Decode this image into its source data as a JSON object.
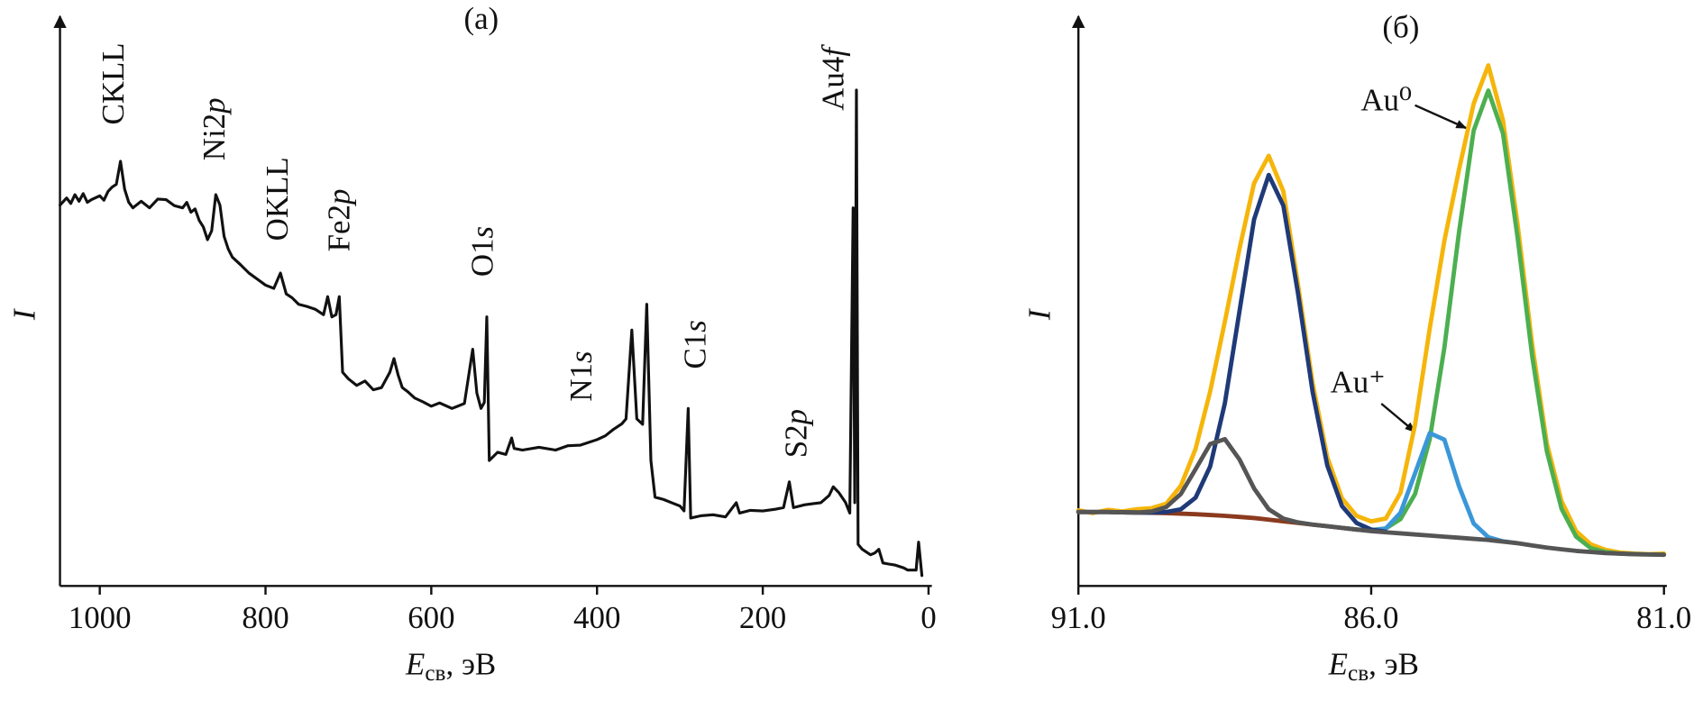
{
  "chart_data": [
    {
      "type": "line",
      "title": "(a)",
      "xlabel": "Eсв, эВ",
      "ylabel": "I",
      "xlim": [
        1048,
        -4
      ],
      "xticks": [
        1000,
        800,
        600,
        400,
        200,
        0
      ],
      "ylim": [
        0,
        100
      ],
      "annotations": [
        "CKLL",
        "Ni2p",
        "OKLL",
        "Fe2p",
        "O1s",
        "N1s",
        "C1s",
        "S2p",
        "Au4f"
      ],
      "x": [
        1048,
        1040,
        1035,
        1030,
        1025,
        1020,
        1015,
        1010,
        1000,
        995,
        990,
        985,
        980,
        975,
        970,
        965,
        960,
        950,
        940,
        930,
        920,
        910,
        900,
        895,
        890,
        885,
        880,
        875,
        870,
        865,
        860,
        855,
        850,
        845,
        840,
        830,
        820,
        810,
        800,
        790,
        782,
        775,
        768,
        760,
        750,
        740,
        730,
        725,
        720,
        715,
        711,
        707,
        700,
        690,
        680,
        670,
        660,
        650,
        645,
        640,
        635,
        628,
        620,
        610,
        600,
        590,
        575,
        560,
        550,
        545,
        540,
        536,
        533,
        530,
        520,
        510,
        503,
        500,
        490,
        470,
        450,
        435,
        420,
        400,
        390,
        380,
        370,
        365,
        358,
        352,
        345,
        340,
        335,
        330,
        320,
        310,
        300,
        295,
        290,
        287,
        275,
        260,
        245,
        232,
        228,
        215,
        200,
        185,
        175,
        168,
        163,
        150,
        140,
        130,
        120,
        115,
        108,
        100,
        95,
        91,
        89,
        87,
        85,
        80,
        75,
        70,
        65,
        60,
        55,
        48,
        40,
        30,
        25,
        15,
        12,
        8
      ],
      "series": [
        {
          "color": "#111111",
          "values": [
            69.5,
            70.8,
            69.8,
            71.4,
            70.2,
            71.6,
            70.0,
            70.5,
            71.2,
            70.4,
            72.0,
            72.8,
            73.3,
            77.5,
            72.4,
            70.0,
            69.0,
            70.2,
            69.0,
            70.6,
            70.5,
            69.4,
            69.0,
            70.0,
            68.2,
            68.8,
            66.7,
            65.5,
            63.2,
            64.8,
            71.4,
            69.5,
            63.8,
            61.5,
            60.0,
            58.6,
            57.1,
            56.0,
            54.9,
            54.3,
            57.1,
            53.3,
            52.6,
            51.4,
            51.0,
            50.5,
            49.5,
            52.8,
            49.1,
            49.5,
            52.8,
            39.0,
            37.8,
            36.6,
            37.4,
            35.8,
            36.2,
            39.0,
            41.5,
            38.5,
            36.2,
            35.4,
            34.3,
            33.6,
            32.8,
            33.4,
            32.4,
            33.3,
            43.2,
            35.2,
            32.4,
            33.5,
            49.1,
            22.9,
            24.4,
            24.0,
            27.0,
            25.1,
            24.8,
            25.3,
            24.8,
            25.6,
            25.7,
            26.7,
            27.4,
            28.6,
            29.6,
            30.5,
            46.7,
            30.5,
            29.5,
            51.4,
            22.9,
            16.2,
            15.8,
            15.2,
            14.6,
            13.7,
            32.4,
            12.4,
            12.8,
            13.0,
            12.6,
            15.2,
            13.3,
            13.8,
            13.7,
            14.0,
            14.3,
            19.0,
            14.3,
            14.8,
            15.0,
            15.2,
            16.5,
            18.1,
            17.0,
            15.2,
            13.3,
            69.0,
            15.2,
            90.5,
            7.6,
            6.7,
            6.2,
            5.7,
            6.0,
            6.7,
            4.2,
            4.0,
            3.8,
            3.3,
            2.9,
            2.9,
            8.0,
            1.9
          ]
        }
      ]
    },
    {
      "type": "line",
      "title": "(б)",
      "xlabel": "Eсв, эВ",
      "ylabel": "I",
      "xlim": [
        91,
        80.95
      ],
      "xticks": [
        {
          "value": 91,
          "label": "91.0"
        },
        {
          "value": 86,
          "label": "86.0"
        },
        {
          "value": 81,
          "label": "81.0"
        }
      ],
      "ylim": [
        0,
        100
      ],
      "annotations": [
        "Au⁰",
        "Au⁺"
      ],
      "x": [
        91,
        90.75,
        90.5,
        90.25,
        90,
        89.75,
        89.5,
        89.25,
        89,
        88.75,
        88.5,
        88.25,
        88,
        87.75,
        87.5,
        87.25,
        87,
        86.75,
        86.5,
        86.25,
        86,
        85.75,
        85.5,
        85.25,
        85,
        84.75,
        84.5,
        84.25,
        84,
        83.75,
        83.5,
        83.25,
        83,
        82.75,
        82.5,
        82.25,
        82,
        81.75,
        81.5,
        81.25,
        81
      ],
      "series": [
        {
          "color": "#f5b50a",
          "values": [
            13.8,
            13.3,
            13.9,
            13.6,
            14.0,
            14.2,
            15.0,
            18.3,
            25.0,
            35.5,
            48.2,
            61.5,
            73.5,
            78.5,
            72.0,
            55.0,
            37.0,
            23.5,
            16.0,
            12.8,
            11.8,
            12.3,
            17.0,
            29.5,
            47.0,
            63.0,
            76.0,
            88.0,
            95.0,
            85.0,
            66.0,
            44.0,
            26.0,
            15.5,
            10.0,
            7.6,
            6.6,
            6.1,
            5.9,
            5.8,
            5.9
          ]
        },
        {
          "color": "#8b3a1e",
          "values": [
            13.5,
            13.5,
            13.5,
            13.45,
            13.4,
            13.35,
            13.3,
            13.2,
            13.1,
            12.95,
            12.8,
            12.6,
            12.4,
            12.1,
            11.8,
            11.5,
            11.2,
            10.9,
            10.6,
            10.3,
            null,
            null,
            null,
            null,
            null,
            null,
            null,
            null,
            null,
            null,
            null,
            null,
            null,
            null,
            null,
            null,
            null,
            null,
            null,
            null,
            null
          ]
        },
        {
          "color": "#4caf50",
          "values": [
            null,
            null,
            null,
            null,
            null,
            null,
            null,
            null,
            null,
            null,
            null,
            null,
            null,
            null,
            null,
            null,
            null,
            null,
            10.6,
            10.3,
            10.2,
            10.5,
            12.2,
            16.8,
            26.8,
            43.5,
            64.6,
            83.1,
            90.4,
            82.6,
            63.6,
            41.9,
            24.6,
            14.1,
            9.0,
            6.9,
            6.2,
            5.9,
            5.8,
            5.75,
            5.7
          ]
        },
        {
          "color": "#3a97d8",
          "values": [
            null,
            null,
            null,
            null,
            null,
            null,
            null,
            null,
            null,
            null,
            null,
            null,
            null,
            null,
            null,
            null,
            null,
            null,
            null,
            10.3,
            10.1,
            10.5,
            13.35,
            20.6,
            27.9,
            26.7,
            18.2,
            11.4,
            8.9,
            8.15,
            7.8,
            null,
            null,
            null,
            null,
            null,
            null,
            null,
            null,
            null,
            null
          ]
        },
        {
          "color": "#1f3a78",
          "values": [
            13.5,
            13.5,
            13.5,
            13.45,
            13.4,
            13.4,
            13.5,
            14.0,
            16.1,
            21.8,
            33.3,
            50.1,
            66.9,
            75.0,
            69.4,
            53.4,
            35.4,
            22.0,
            14.6,
            11.5,
            10.3,
            9.9,
            null,
            null,
            null,
            null,
            null,
            null,
            null,
            null,
            null,
            null,
            null,
            null,
            null,
            null,
            null,
            null,
            null,
            null,
            null
          ]
        },
        {
          "color": "#555555",
          "values": [
            13.5,
            13.5,
            13.5,
            13.45,
            13.4,
            13.6,
            14.4,
            16.8,
            21.3,
            25.9,
            26.8,
            23.1,
            17.8,
            14.0,
            12.3,
            11.6,
            11.2,
            10.9,
            10.6,
            10.3,
            10.0,
            9.8,
            9.6,
            9.4,
            9.2,
            9.0,
            8.8,
            8.6,
            8.4,
            8.1,
            7.8,
            7.4,
            7.0,
            6.7,
            6.4,
            6.2,
            6.0,
            5.9,
            5.8,
            5.75,
            5.7
          ]
        }
      ]
    }
  ]
}
